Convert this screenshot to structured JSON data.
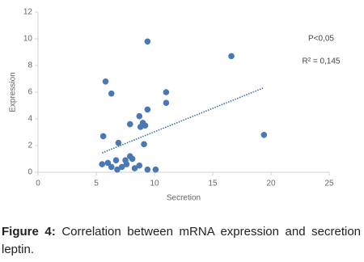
{
  "chart_data": {
    "type": "scatter",
    "x_label": "Secretion",
    "y_label": "Expression",
    "annotations": [
      "P<0,05",
      "R² = 0,145"
    ],
    "series": [
      {
        "color": "#4a78b5",
        "x": [
          5.8,
          6.3,
          9.4,
          16.6,
          11.0,
          11.0,
          9.4,
          8.7,
          5.6,
          6.9,
          7.9,
          8.8,
          9.0,
          9.2,
          9.1,
          19.4,
          5.5,
          6.0,
          6.3,
          6.7,
          6.8,
          7.2,
          7.5,
          7.6,
          7.9,
          8.1,
          8.3,
          8.7,
          9.4,
          10.1
        ],
        "values": [
          6.8,
          5.9,
          9.8,
          8.7,
          6.0,
          5.2,
          4.7,
          4.2,
          2.7,
          2.2,
          3.6,
          3.4,
          3.7,
          3.5,
          2.1,
          2.8,
          0.6,
          0.7,
          0.4,
          0.9,
          0.2,
          0.4,
          0.9,
          0.6,
          1.2,
          1.0,
          0.3,
          0.5,
          0.2,
          0.2
        ]
      }
    ],
    "trendline": {
      "color": "#3a6ea8",
      "x": [
        5.5,
        19.3
      ],
      "values": [
        1.45,
        6.3
      ]
    },
    "xlim": [
      0,
      25
    ],
    "xticks": [
      0,
      5,
      10,
      15,
      20,
      25
    ],
    "ylim": [
      0,
      12
    ],
    "yticks": [
      0,
      2,
      4,
      6,
      8,
      10,
      12
    ],
    "caption": {
      "label": "Figure 4:",
      "text": "Correlation between mRNA expression and secretion leptin."
    }
  }
}
